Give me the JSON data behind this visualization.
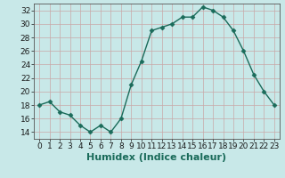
{
  "x": [
    0,
    1,
    2,
    3,
    4,
    5,
    6,
    7,
    8,
    9,
    10,
    11,
    12,
    13,
    14,
    15,
    16,
    17,
    18,
    19,
    20,
    21,
    22,
    23
  ],
  "y": [
    18,
    18.5,
    17,
    16.5,
    15,
    14,
    15,
    14,
    16,
    21,
    24.5,
    29,
    29.5,
    30,
    31,
    31,
    32.5,
    32,
    31,
    29,
    26,
    22.5,
    20,
    18
  ],
  "line_color": "#1a6b5a",
  "bg_color": "#c8e8e8",
  "grid_color": "#c8a8a8",
  "xlabel": "Humidex (Indice chaleur)",
  "ylim": [
    13,
    33
  ],
  "xlim": [
    -0.5,
    23.5
  ],
  "yticks": [
    14,
    16,
    18,
    20,
    22,
    24,
    26,
    28,
    30,
    32
  ],
  "xtick_labels": [
    "0",
    "1",
    "2",
    "3",
    "4",
    "5",
    "6",
    "7",
    "8",
    "9",
    "10",
    "11",
    "12",
    "13",
    "14",
    "15",
    "16",
    "17",
    "18",
    "19",
    "20",
    "21",
    "22",
    "23"
  ],
  "marker": "D",
  "markersize": 2.5,
  "linewidth": 1.0,
  "xlabel_fontsize": 8,
  "tick_fontsize": 6.5
}
